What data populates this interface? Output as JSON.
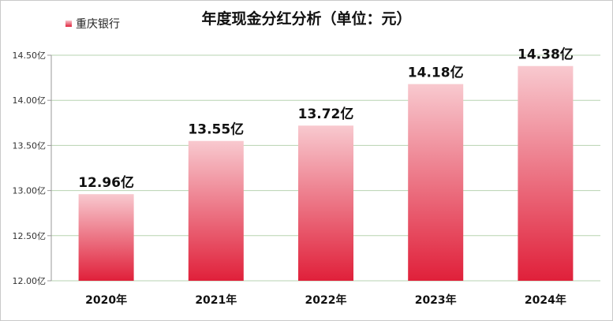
{
  "chart_data": {
    "type": "bar",
    "title": "年度现金分红分析（单位：元）",
    "categories": [
      "2020年",
      "2021年",
      "2022年",
      "2023年",
      "2024年"
    ],
    "series": [
      {
        "name": "重庆银行",
        "values": [
          12.96,
          13.55,
          13.72,
          14.18,
          14.38
        ],
        "labels": [
          "12.96亿",
          "13.55亿",
          "13.72亿",
          "14.18亿",
          "14.38亿"
        ]
      }
    ],
    "ylim": [
      12.0,
      14.5
    ],
    "yticks": [
      12.0,
      12.5,
      13.0,
      13.5,
      14.0,
      14.5
    ],
    "ytick_labels": [
      "12.00亿",
      "12.50亿",
      "13.00亿",
      "13.50亿",
      "14.00亿",
      "14.50亿"
    ],
    "grid": true,
    "legend_position": "top-left",
    "colors": {
      "bar_top": "#f8c9cf",
      "bar_bottom": "#e0203a",
      "grid": "#b7d3b0"
    }
  }
}
